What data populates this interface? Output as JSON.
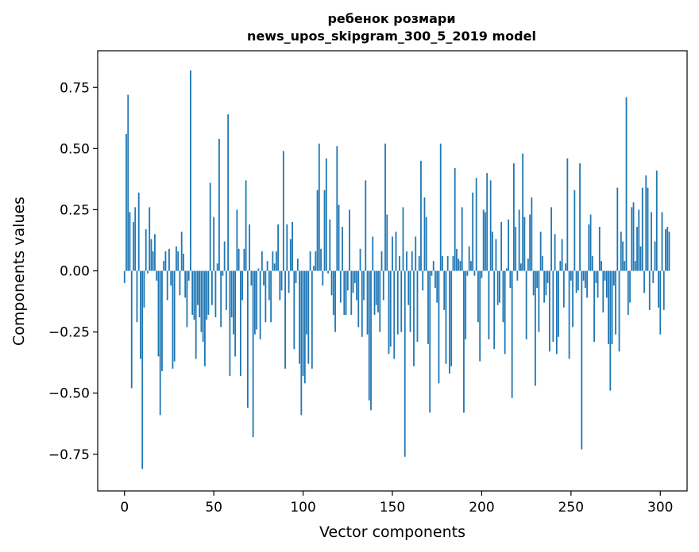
{
  "chart_data": {
    "type": "bar",
    "title": "ребенок розмари",
    "subtitle": "news_upos_skipgram_300_5_2019 model",
    "xlabel": "Vector components",
    "ylabel": "Components values",
    "xlim": [
      -15,
      315
    ],
    "ylim": [
      -0.9,
      0.9
    ],
    "xticks": [
      0,
      50,
      100,
      150,
      200,
      250,
      300
    ],
    "yticks": [
      -0.75,
      -0.5,
      -0.25,
      0.0,
      0.25,
      0.5,
      0.75
    ],
    "ytick_labels": [
      "−0.75",
      "−0.50",
      "−0.25",
      "0.00",
      "0.25",
      "0.50",
      "0.75"
    ],
    "bar_color": "#1f77b4",
    "grid": false,
    "values": [
      -0.05,
      0.56,
      0.72,
      0.24,
      -0.48,
      0.2,
      0.26,
      -0.21,
      0.32,
      -0.36,
      -0.81,
      -0.15,
      0.17,
      -0.01,
      0.26,
      0.13,
      0.08,
      0.15,
      -0.04,
      -0.35,
      -0.59,
      -0.41,
      0.04,
      0.08,
      -0.12,
      0.09,
      -0.06,
      -0.4,
      -0.37,
      0.1,
      0.08,
      -0.1,
      0.16,
      0.07,
      -0.11,
      -0.23,
      -0.04,
      0.82,
      -0.18,
      -0.2,
      -0.36,
      -0.14,
      -0.19,
      -0.25,
      -0.29,
      -0.39,
      -0.2,
      -0.18,
      0.36,
      -0.14,
      0.22,
      -0.19,
      0.03,
      0.54,
      -0.23,
      -0.02,
      0.12,
      -0.16,
      0.64,
      -0.43,
      -0.19,
      -0.26,
      -0.35,
      0.25,
      0.09,
      -0.43,
      -0.12,
      0.09,
      0.37,
      -0.56,
      0.19,
      -0.06,
      -0.68,
      -0.26,
      -0.24,
      0.01,
      -0.28,
      0.08,
      -0.06,
      -0.21,
      0.04,
      -0.12,
      -0.21,
      0.08,
      0.03,
      0.08,
      0.19,
      -0.12,
      -0.08,
      0.49,
      -0.4,
      0.19,
      -0.09,
      0.13,
      0.2,
      -0.32,
      -0.05,
      0.05,
      -0.38,
      -0.59,
      -0.43,
      -0.46,
      -0.26,
      -0.38,
      0.08,
      -0.4,
      0.02,
      0.08,
      0.33,
      0.52,
      0.09,
      -0.06,
      0.33,
      0.46,
      -0.01,
      0.21,
      -0.1,
      -0.18,
      -0.25,
      0.51,
      0.27,
      -0.13,
      0.18,
      -0.18,
      -0.18,
      -0.08,
      0.25,
      -0.18,
      -0.09,
      -0.05,
      -0.12,
      -0.23,
      0.09,
      -0.27,
      -0.12,
      0.37,
      -0.26,
      -0.53,
      -0.57,
      0.14,
      -0.18,
      -0.14,
      -0.17,
      -0.25,
      0.08,
      -0.12,
      0.52,
      0.23,
      -0.34,
      -0.31,
      0.14,
      -0.36,
      0.16,
      -0.26,
      0.06,
      -0.25,
      0.26,
      -0.76,
      0.08,
      -0.14,
      -0.25,
      0.08,
      -0.39,
      0.14,
      -0.29,
      0.06,
      0.45,
      -0.08,
      0.3,
      0.22,
      -0.3,
      -0.58,
      -0.02,
      0.04,
      -0.07,
      -0.13,
      -0.46,
      0.52,
      0.06,
      -0.16,
      -0.38,
      0.06,
      -0.42,
      -0.39,
      0.06,
      0.42,
      0.09,
      0.05,
      0.04,
      0.26,
      -0.58,
      -0.28,
      -0.02,
      0.1,
      0.04,
      0.32,
      -0.02,
      0.38,
      -0.21,
      -0.37,
      -0.03,
      0.25,
      0.24,
      0.4,
      -0.28,
      0.37,
      0.16,
      -0.32,
      0.13,
      -0.14,
      -0.13,
      0.2,
      -0.21,
      -0.34,
      0.01,
      0.21,
      -0.07,
      -0.52,
      0.44,
      0.18,
      -0.04,
      0.25,
      0.03,
      0.48,
      0.22,
      -0.28,
      0.05,
      0.23,
      0.3,
      -0.1,
      -0.47,
      -0.07,
      -0.25,
      0.16,
      0.06,
      -0.13,
      -0.1,
      -0.05,
      -0.33,
      0.26,
      -0.29,
      0.15,
      -0.34,
      -0.27,
      0.04,
      0.13,
      -0.15,
      0.03,
      0.46,
      -0.36,
      -0.04,
      -0.23,
      0.33,
      -0.09,
      -0.08,
      0.44,
      -0.73,
      -0.04,
      -0.07,
      -0.11,
      0.19,
      0.23,
      0.06,
      -0.29,
      -0.05,
      -0.11,
      0.18,
      0.04,
      -0.17,
      -0.04,
      -0.11,
      -0.3,
      -0.49,
      -0.3,
      -0.06,
      -0.26,
      0.34,
      -0.33,
      0.16,
      0.12,
      0.04,
      0.71,
      -0.18,
      -0.13,
      0.26,
      0.28,
      0.04,
      0.18,
      0.25,
      0.1,
      0.34,
      -0.09,
      0.39,
      0.34,
      -0.16,
      0.24,
      -0.05,
      0.12,
      0.41,
      -0.15,
      -0.26,
      0.24,
      -0.16,
      0.17,
      0.18,
      0.16
    ]
  }
}
